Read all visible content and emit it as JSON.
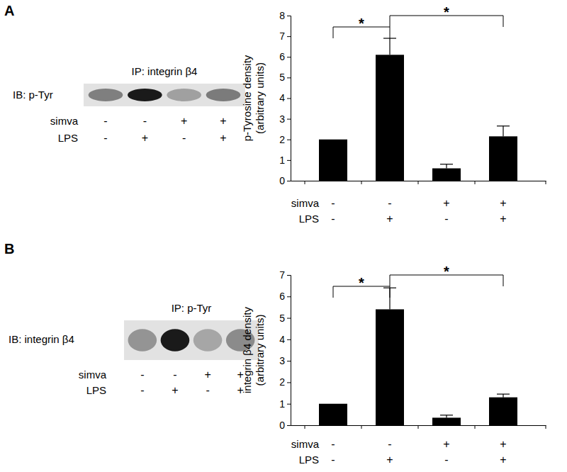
{
  "chart_data": [
    {
      "type": "bar",
      "panel_label": "A",
      "blot": {
        "ip": "IP: integrin β4",
        "ib": "IB: p-Tyr"
      },
      "categories": [
        null,
        null,
        null,
        null
      ],
      "values": [
        2.0,
        6.1,
        0.6,
        2.15
      ],
      "errors": [
        0,
        0.8,
        0.2,
        0.5
      ],
      "color": "#000000",
      "ylabel": [
        "p-Tyrosine density",
        "(arbitrary units)"
      ],
      "ylim": [
        0,
        8
      ],
      "yticks": [
        0,
        1,
        2,
        3,
        4,
        5,
        6,
        7,
        8
      ],
      "tick_labels": "y",
      "x_table": {
        "labels": [
          "simva",
          "LPS"
        ],
        "rows": [
          [
            "-",
            "-",
            "+",
            "+"
          ],
          [
            "-",
            "+",
            "-",
            "+"
          ]
        ]
      },
      "annotations": [
        {
          "text": "*",
          "from": 0,
          "to": 1
        },
        {
          "text": "*",
          "from": 1,
          "to": 3
        }
      ]
    },
    {
      "type": "bar",
      "panel_label": "B",
      "blot": {
        "ip": "IP: p-Tyr",
        "ib": "IB: integrin β4"
      },
      "categories": [
        null,
        null,
        null,
        null
      ],
      "values": [
        1.0,
        5.4,
        0.35,
        1.3
      ],
      "errors": [
        0,
        1.0,
        0.12,
        0.15
      ],
      "color": "#000000",
      "ylabel": [
        "integrin β4 density",
        "(arbitrary units)"
      ],
      "ylim": [
        0,
        7
      ],
      "yticks": [
        0,
        1,
        2,
        3,
        4,
        5,
        6,
        7
      ],
      "tick_labels": "y",
      "x_table": {
        "labels": [
          "simva",
          "LPS"
        ],
        "rows": [
          [
            "-",
            "-",
            "+",
            "+"
          ],
          [
            "-",
            "+",
            "-",
            "+"
          ]
        ]
      },
      "annotations": [
        {
          "text": "*",
          "from": 0,
          "to": 1
        },
        {
          "text": "*",
          "from": 1,
          "to": 3
        }
      ]
    }
  ]
}
